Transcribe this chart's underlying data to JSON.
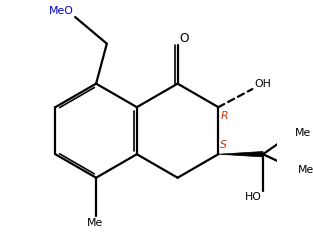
{
  "bg": "#ffffff",
  "lc": "#000000",
  "lw": 1.6,
  "fs": 7.8,
  "meo_color": "#0000cc",
  "stereo_color": "#cc3300",
  "bl": 0.095,
  "C8a": [
    0.435,
    0.57
  ],
  "C4a": [
    0.435,
    0.38
  ]
}
